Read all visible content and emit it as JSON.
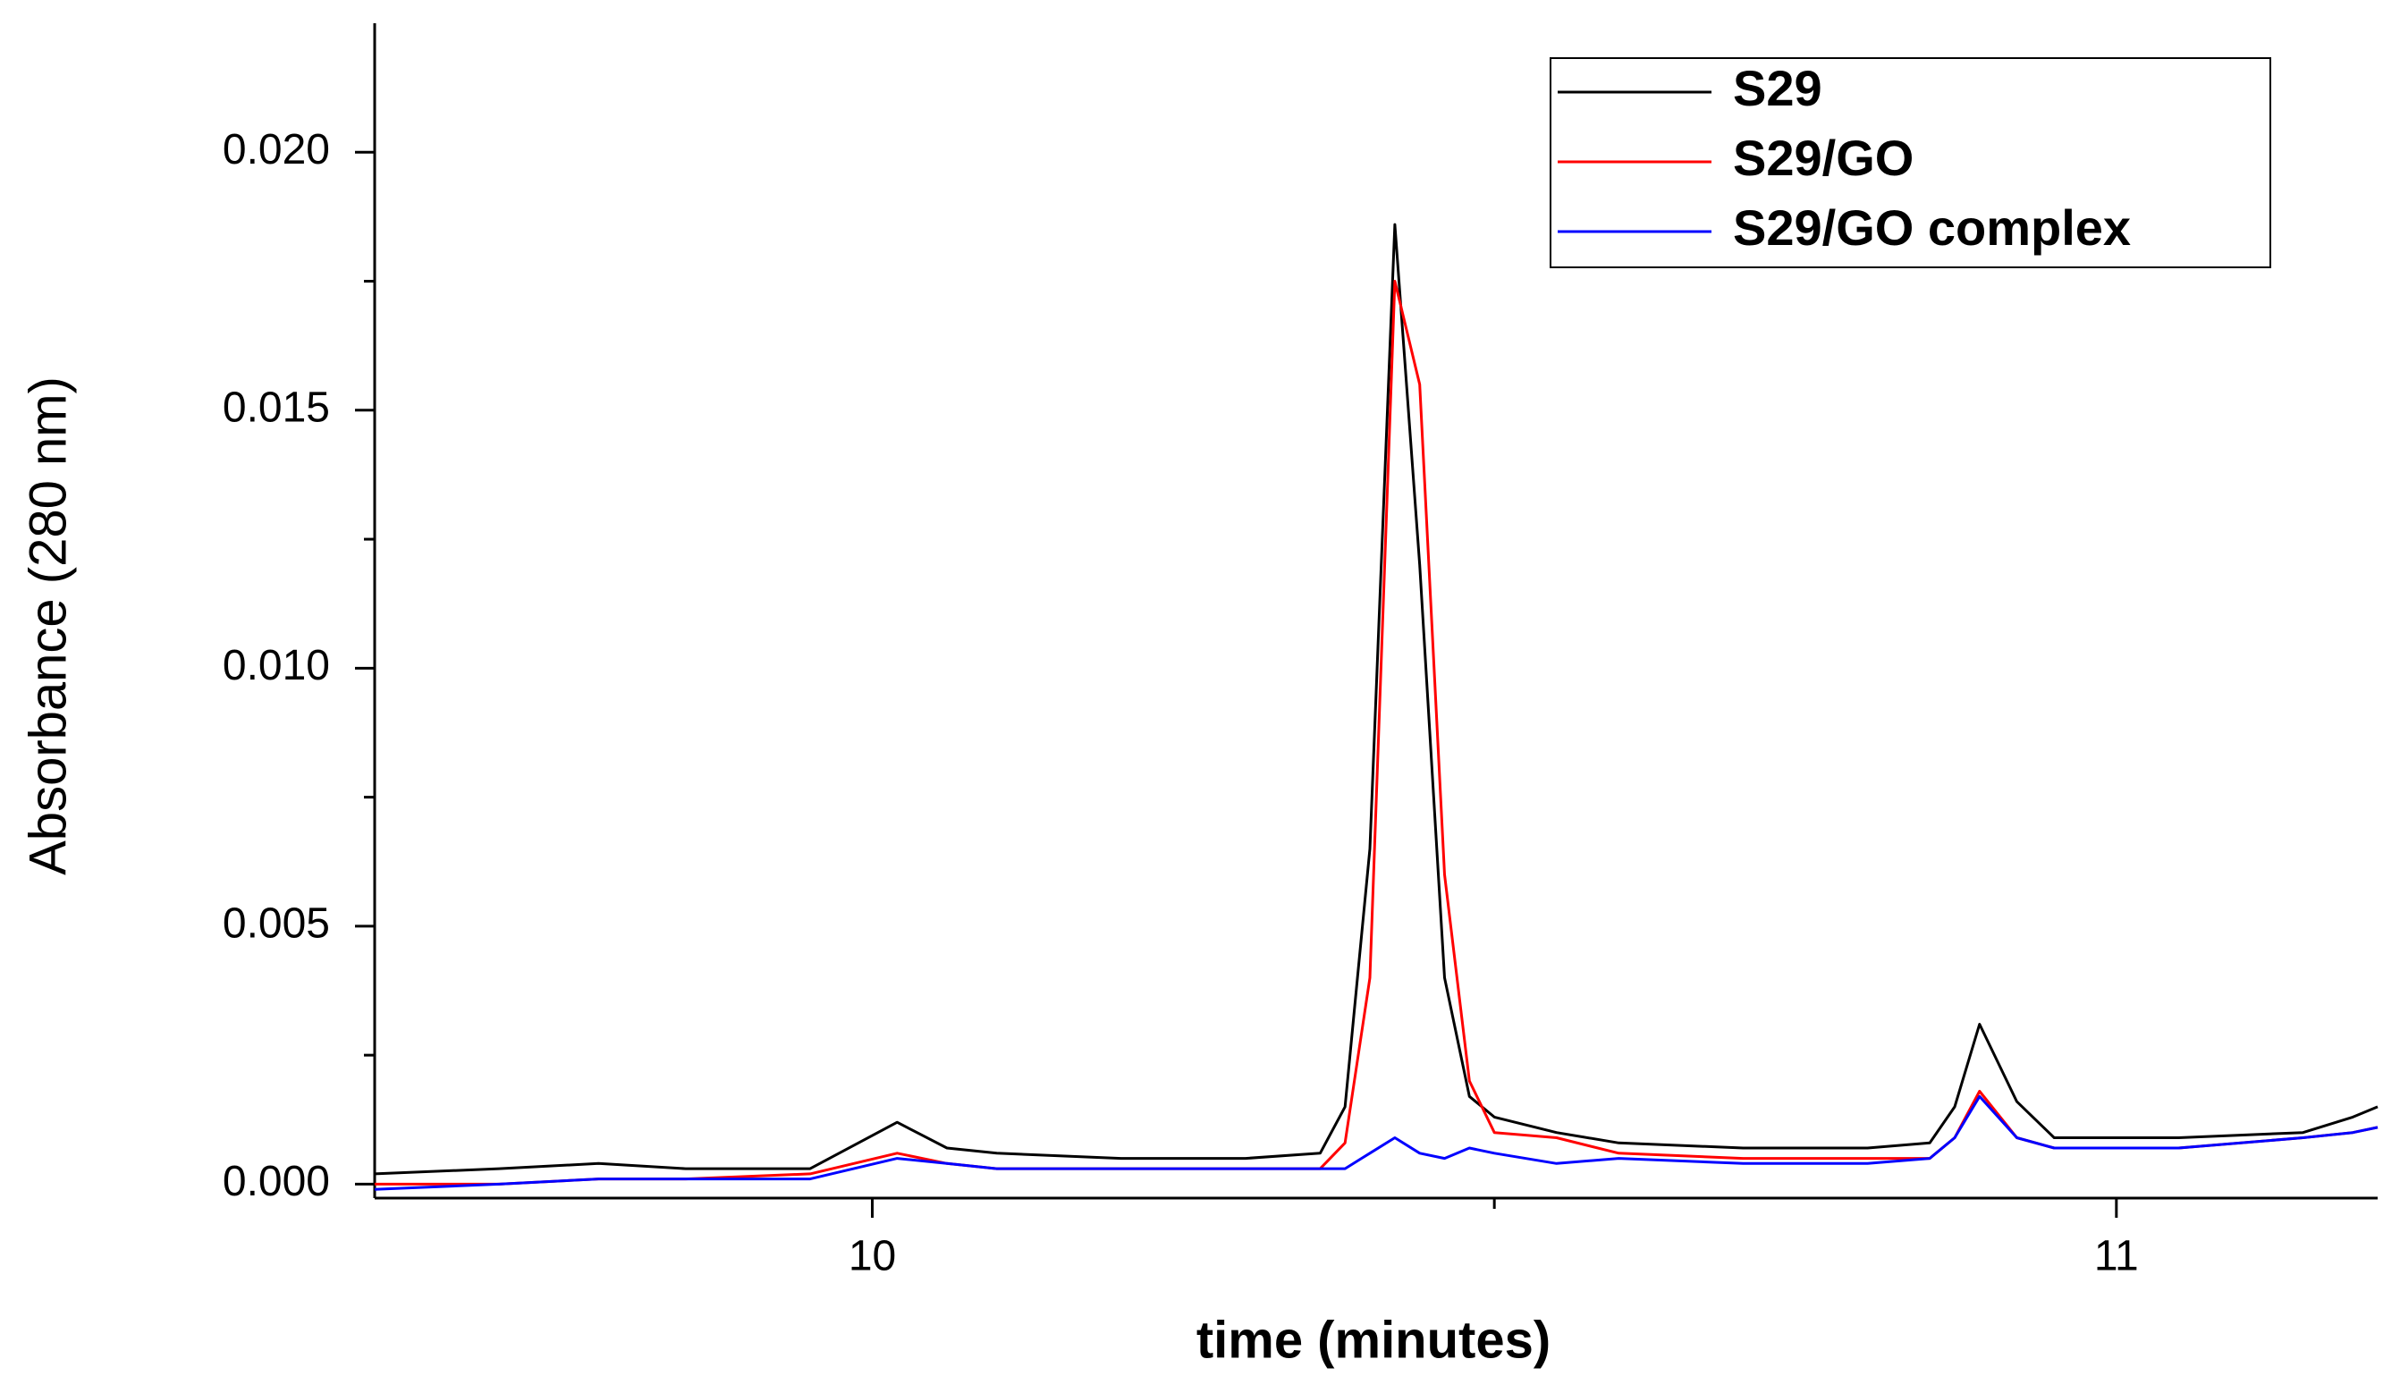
{
  "chart_data": {
    "type": "line",
    "x_label": "time (minutes)",
    "y_label": "Absorbance (280 nm)",
    "x": [
      9.6,
      9.7,
      9.78,
      9.85,
      9.95,
      10.02,
      10.06,
      10.1,
      10.2,
      10.3,
      10.36,
      10.38,
      10.4,
      10.42,
      10.44,
      10.46,
      10.48,
      10.5,
      10.55,
      10.6,
      10.7,
      10.8,
      10.85,
      10.87,
      10.89,
      10.92,
      10.95,
      11.05,
      11.15,
      11.19,
      11.21
    ],
    "series": [
      {
        "name": "S29",
        "color": "#000000",
        "values": [
          0.0002,
          0.0003,
          0.0004,
          0.0003,
          0.0003,
          0.0012,
          0.0007,
          0.0006,
          0.0005,
          0.0005,
          0.0006,
          0.0015,
          0.0065,
          0.0186,
          0.012,
          0.004,
          0.0017,
          0.0013,
          0.001,
          0.0008,
          0.0007,
          0.0007,
          0.0008,
          0.0015,
          0.0031,
          0.0016,
          0.0009,
          0.0009,
          0.001,
          0.0013,
          0.0015
        ]
      },
      {
        "name": "S29/GO",
        "color": "#ff0000",
        "values": [
          0,
          0,
          0.0001,
          0.0001,
          0.0002,
          0.0006,
          0.0004,
          0.0003,
          0.0003,
          0.0003,
          0.0003,
          0.0008,
          0.004,
          0.0175,
          0.0155,
          0.006,
          0.002,
          0.001,
          0.0009,
          0.0006,
          0.0005,
          0.0005,
          0.0005,
          0.0009,
          0.0018,
          0.0009,
          0.0007,
          0.0007,
          0.0009,
          0.001,
          0.0011
        ]
      },
      {
        "name": "S29/GO complex",
        "color": "#0000ff",
        "values": [
          -0.0001,
          0,
          0.0001,
          0.0001,
          0.0001,
          0.0005,
          0.0004,
          0.0003,
          0.0003,
          0.0003,
          0.0003,
          0.0003,
          0.0006,
          0.0009,
          0.0006,
          0.0005,
          0.0007,
          0.0006,
          0.0004,
          0.0005,
          0.0004,
          0.0004,
          0.0005,
          0.0009,
          0.0017,
          0.0009,
          0.0007,
          0.0007,
          0.0009,
          0.001,
          0.0011
        ]
      }
    ],
    "xlim": [
      9.6,
      11.21
    ],
    "ylim": [
      -0.00027,
      0.0225
    ],
    "xticks": [
      10,
      11
    ],
    "yticks": [
      {
        "value": 0,
        "label": "0.000"
      },
      {
        "value": 0.005,
        "label": "0.005"
      },
      {
        "value": 0.01,
        "label": "0.010"
      },
      {
        "value": 0.015,
        "label": "0.015"
      },
      {
        "value": 0.02,
        "label": "0.020"
      }
    ],
    "grid": false,
    "legend": "upper right"
  }
}
